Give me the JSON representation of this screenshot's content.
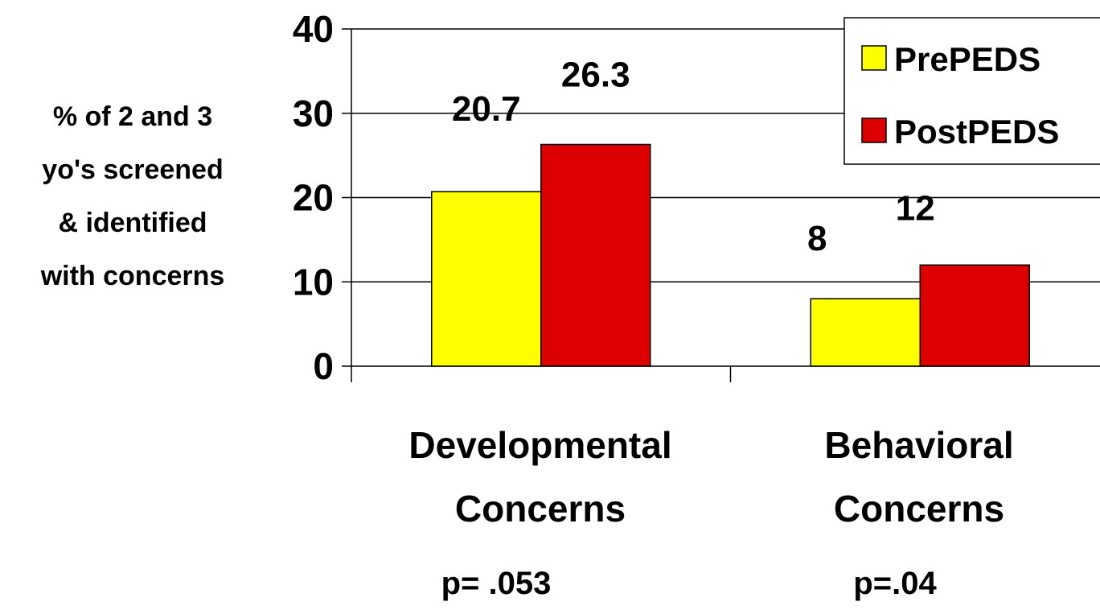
{
  "chart_data": {
    "type": "bar",
    "categories": [
      [
        "Developmental",
        "Concerns"
      ],
      [
        "Behavioral",
        "Concerns"
      ]
    ],
    "category_notes": [
      "p= .053",
      "p=.04"
    ],
    "series": [
      {
        "name": "PrePEDS",
        "values": [
          20.7,
          8
        ],
        "labels": [
          "20.7",
          "8"
        ],
        "color": "#ffff00"
      },
      {
        "name": "PostPEDS",
        "values": [
          26.3,
          12
        ],
        "labels": [
          "26.3",
          "12"
        ],
        "color": "#dd0000"
      }
    ],
    "ylabel": [
      "% of 2 and 3",
      "yo's screened",
      "& identified",
      "with concerns"
    ],
    "ylim": [
      0,
      40
    ],
    "yticks": [
      0,
      10,
      20,
      30,
      40
    ],
    "grid": true,
    "legend": "top-right"
  }
}
